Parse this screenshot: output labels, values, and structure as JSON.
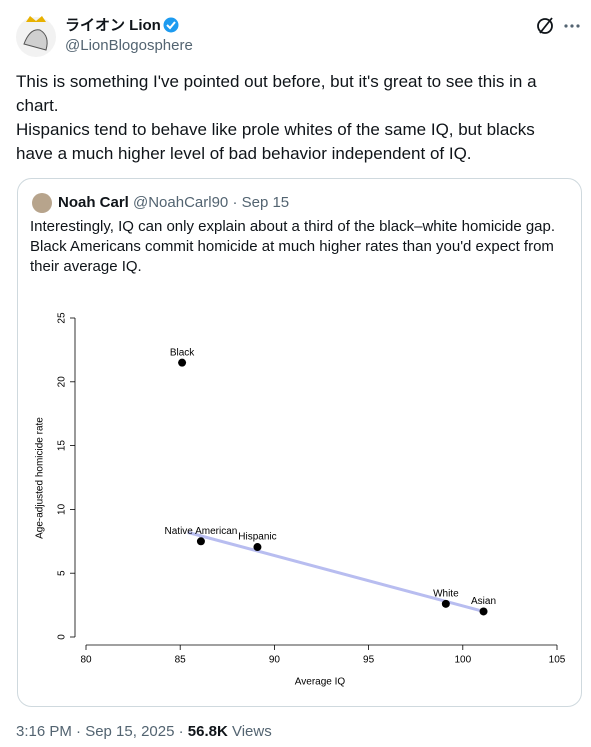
{
  "header": {
    "name": "ライオン Lion",
    "handle": "@LionBlogosphere"
  },
  "body": [
    "This is something I've pointed out before, but it's great to see this in a chart.",
    "Hispanics tend to behave like prole whites of the same IQ, but blacks have a much higher level of bad behavior independent of IQ."
  ],
  "quote": {
    "name": "Noah Carl",
    "meta": "@NoahCarl90 · Sep 15",
    "text": "Interestingly, IQ can only explain about a third of the black–white homicide gap. Black Americans commit homicide at much higher rates than you'd expect from their average IQ."
  },
  "chart_data": {
    "type": "scatter",
    "xlabel": "Average IQ",
    "ylabel": "Age-adjusted homicide rate",
    "x": [
      85.1,
      86.1,
      89.1,
      99.1,
      101.1
    ],
    "y": [
      21.5,
      7.5,
      7.05,
      2.6,
      2.0
    ],
    "labels": [
      "Black",
      "Native American",
      "Hispanic",
      "White",
      "Asian"
    ],
    "color": "#000000",
    "fit": {
      "x": [
        85.4,
        101.1
      ],
      "y": [
        8.2,
        2.0
      ],
      "color": "#b8bdf0"
    },
    "xlim": [
      80,
      105
    ],
    "ylim": [
      0,
      25
    ],
    "xticks": [
      80,
      85,
      90,
      95,
      100,
      105
    ],
    "yticks": [
      0,
      5,
      10,
      15,
      20,
      25
    ]
  },
  "footer": {
    "time": "3:16 PM · Sep 15, 2025 ·",
    "views": "56.8K",
    "views_label": "Views"
  }
}
